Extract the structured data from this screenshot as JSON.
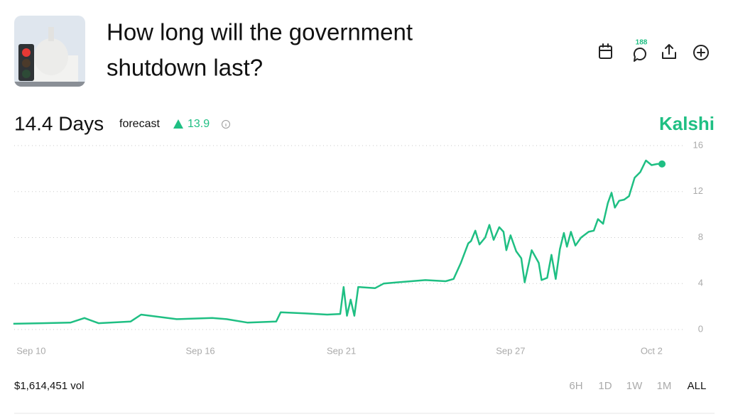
{
  "header": {
    "title_lines": [
      "How long will the government",
      "shutdown last?"
    ],
    "comments": "188"
  },
  "summary": {
    "forecast_value": "14.4 Days",
    "forecast_label": "forecast",
    "change": "13.9",
    "brand": "Kalshi"
  },
  "chart_data": {
    "type": "line",
    "color": "#1fbf83",
    "x": [
      9.37,
      10.38,
      11.39,
      11.89,
      12.39,
      13.53,
      13.9,
      15.16,
      16.42,
      16.93,
      17.68,
      18.69,
      18.85,
      19.7,
      20.5,
      20.96,
      21.08,
      21.2,
      21.33,
      21.46,
      21.6,
      22.2,
      22.5,
      22.97,
      23.98,
      24.7,
      24.98,
      25.24,
      25.5,
      25.6,
      25.75,
      25.9,
      26.1,
      26.25,
      26.4,
      26.6,
      26.75,
      26.85,
      27.0,
      27.2,
      27.38,
      27.5,
      27.75,
      28.0,
      28.1,
      28.3,
      28.45,
      28.6,
      28.75,
      28.89,
      29.0,
      29.14,
      29.3,
      29.5,
      29.77,
      29.95,
      30.1,
      30.28,
      30.45,
      30.58,
      30.7,
      30.85,
      31.03,
      31.2,
      31.4,
      31.6,
      31.8,
      32.0,
      32.2,
      32.37
    ],
    "values": [
      0.5,
      0.55,
      0.6,
      1.0,
      0.55,
      0.7,
      1.3,
      0.9,
      1.0,
      0.9,
      0.6,
      0.7,
      1.5,
      1.4,
      1.3,
      1.35,
      3.7,
      1.2,
      2.6,
      1.2,
      3.7,
      3.6,
      4.0,
      4.1,
      4.3,
      4.2,
      4.4,
      5.8,
      7.5,
      7.7,
      8.6,
      7.4,
      8.0,
      9.1,
      7.8,
      8.9,
      8.5,
      6.9,
      8.2,
      6.8,
      6.2,
      4.1,
      6.9,
      5.8,
      4.3,
      4.5,
      6.5,
      4.4,
      7.0,
      8.4,
      7.2,
      8.5,
      7.3,
      8.0,
      8.5,
      8.6,
      9.6,
      9.2,
      11.0,
      11.9,
      10.6,
      11.2,
      11.3,
      11.6,
      13.2,
      13.7,
      14.7,
      14.3,
      14.4,
      14.4
    ],
    "xlim": [
      9.4,
      33.2
    ],
    "xticks": [
      {
        "value": 10,
        "label": "Sep 10"
      },
      {
        "value": 16,
        "label": "Sep 16"
      },
      {
        "value": 21,
        "label": "Sep 21"
      },
      {
        "value": 27,
        "label": "Sep 27"
      },
      {
        "value": 32,
        "label": "Oct 2"
      }
    ],
    "ylim": [
      0,
      16
    ],
    "yticks": [
      0,
      4,
      8,
      12,
      16
    ],
    "grid": true
  },
  "footer": {
    "volume": "$1,614,451 vol",
    "ranges": [
      "6H",
      "1D",
      "1W",
      "1M",
      "ALL"
    ],
    "active_range": "ALL"
  }
}
